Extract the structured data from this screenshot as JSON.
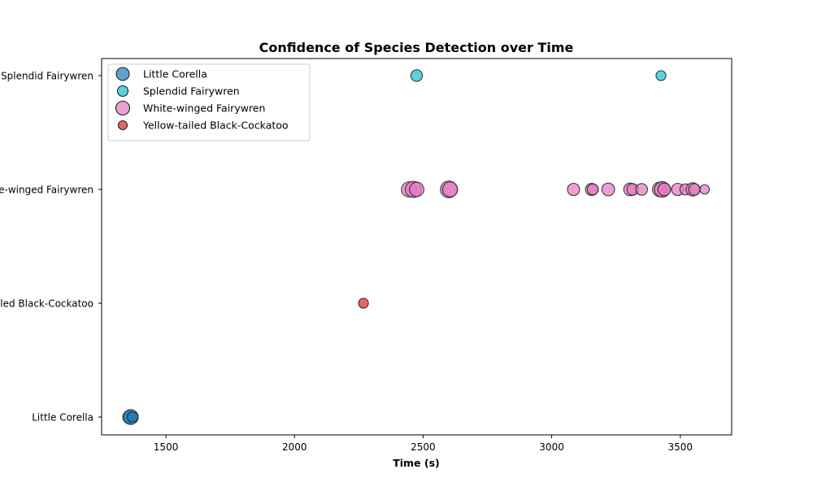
{
  "chart_data": {
    "type": "scatter",
    "title": "Confidence of Species Detection over Time",
    "xlabel": "Time (s)",
    "ylabel": "",
    "xlim": [
      1250,
      3700
    ],
    "x_ticks": [
      1500,
      2000,
      2500,
      3000,
      3500
    ],
    "y_categories": [
      "Little Corella",
      "Yellow-tailed Black-Cockatoo",
      "White-winged Fairywren",
      "Splendid Fairywren"
    ],
    "y_tick_labels": [
      "Little Corella",
      "Yellow-tailed Black-Cockatoo",
      "White-winged Fairywren",
      "Splendid Fairywren"
    ],
    "grid": false,
    "legend_position": "upper-left",
    "marker_size_encodes": "confidence",
    "series": [
      {
        "name": "Little Corella",
        "color": "#1f77b4",
        "points": [
          {
            "x": 1357,
            "y": "Little Corella",
            "confidence": 0.55
          },
          {
            "x": 1363,
            "y": "Little Corella",
            "confidence": 0.75
          },
          {
            "x": 1370,
            "y": "Little Corella",
            "confidence": 0.35
          }
        ]
      },
      {
        "name": "Splendid Fairywren",
        "color": "#17becf",
        "points": [
          {
            "x": 2475,
            "y": "Splendid Fairywren",
            "confidence": 0.45
          },
          {
            "x": 3425,
            "y": "Splendid Fairywren",
            "confidence": 0.3
          }
        ]
      },
      {
        "name": "White-winged Fairywren",
        "color": "#e377c2",
        "points": [
          {
            "x": 2445,
            "y": "White-winged Fairywren",
            "confidence": 0.75
          },
          {
            "x": 2462,
            "y": "White-winged Fairywren",
            "confidence": 0.85
          },
          {
            "x": 2475,
            "y": "White-winged Fairywren",
            "confidence": 0.7
          },
          {
            "x": 2600,
            "y": "White-winged Fairywren",
            "confidence": 0.9
          },
          {
            "x": 2605,
            "y": "White-winged Fairywren",
            "confidence": 0.75
          },
          {
            "x": 3085,
            "y": "White-winged Fairywren",
            "confidence": 0.5
          },
          {
            "x": 3155,
            "y": "White-winged Fairywren",
            "confidence": 0.5
          },
          {
            "x": 3160,
            "y": "White-winged Fairywren",
            "confidence": 0.4
          },
          {
            "x": 3220,
            "y": "White-winged Fairywren",
            "confidence": 0.55
          },
          {
            "x": 3305,
            "y": "White-winged Fairywren",
            "confidence": 0.55
          },
          {
            "x": 3315,
            "y": "White-winged Fairywren",
            "confidence": 0.45
          },
          {
            "x": 3350,
            "y": "White-winged Fairywren",
            "confidence": 0.45
          },
          {
            "x": 3420,
            "y": "White-winged Fairywren",
            "confidence": 0.7
          },
          {
            "x": 3430,
            "y": "White-winged Fairywren",
            "confidence": 0.8
          },
          {
            "x": 3438,
            "y": "White-winged Fairywren",
            "confidence": 0.55
          },
          {
            "x": 3490,
            "y": "White-winged Fairywren",
            "confidence": 0.5
          },
          {
            "x": 3520,
            "y": "White-winged Fairywren",
            "confidence": 0.4
          },
          {
            "x": 3548,
            "y": "White-winged Fairywren",
            "confidence": 0.6
          },
          {
            "x": 3555,
            "y": "White-winged Fairywren",
            "confidence": 0.45
          },
          {
            "x": 3595,
            "y": "White-winged Fairywren",
            "confidence": 0.25
          }
        ]
      },
      {
        "name": "Yellow-tailed Black-Cockatoo",
        "color": "#d62728",
        "points": [
          {
            "x": 2268,
            "y": "Yellow-tailed Black-Cockatoo",
            "confidence": 0.3
          }
        ]
      }
    ]
  }
}
